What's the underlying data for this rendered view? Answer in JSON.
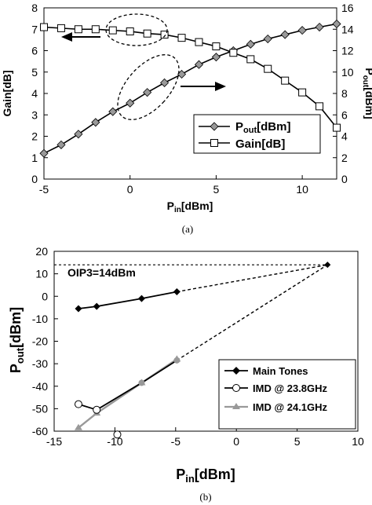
{
  "chart_data": [
    {
      "type": "line",
      "caption": "(a)",
      "xlabel_main": "P",
      "xlabel_sub": "in",
      "xlabel_unit": "[dBm]",
      "ylabel": "Gain[dB]",
      "y2label_main": "P",
      "y2label_sub": "out",
      "y2label_unit": "[dBm]",
      "xlim": [
        -5,
        12
      ],
      "ylim": [
        0,
        8
      ],
      "y2lim": [
        0,
        16
      ],
      "xticks": [
        -5,
        0,
        5,
        10
      ],
      "yticks": [
        0,
        1,
        2,
        3,
        4,
        5,
        6,
        7,
        8
      ],
      "y2ticks": [
        0,
        2,
        4,
        6,
        8,
        10,
        12,
        14,
        16
      ],
      "grid": false,
      "legend_position": "bottom-right",
      "legend": [
        {
          "main": "P",
          "sub": "out",
          "unit": "[dBm]",
          "marker": "diamond"
        },
        {
          "main": "Gain[dB]",
          "sub": "",
          "unit": "",
          "marker": "square"
        }
      ],
      "series": [
        {
          "axis": "right",
          "marker": "diamond",
          "x": [
            -5,
            -4,
            -3,
            -2,
            -1,
            0,
            1,
            2,
            3,
            4,
            5,
            6,
            7,
            8,
            9,
            10,
            11,
            12
          ],
          "values": [
            2.4,
            3.2,
            4.2,
            5.3,
            6.3,
            7.1,
            8.1,
            9.0,
            9.8,
            10.7,
            11.4,
            12.0,
            12.6,
            13.1,
            13.5,
            13.9,
            14.2,
            14.5
          ]
        },
        {
          "axis": "left",
          "marker": "square",
          "x": [
            -5,
            -4,
            -3,
            -2,
            -1,
            0,
            1,
            2,
            3,
            4,
            5,
            6,
            7,
            8,
            9,
            10,
            11,
            12
          ],
          "values": [
            7.1,
            7.05,
            7.0,
            7.0,
            6.95,
            6.9,
            6.8,
            6.75,
            6.6,
            6.4,
            6.2,
            5.9,
            5.6,
            5.15,
            4.6,
            4.05,
            3.4,
            2.4
          ]
        }
      ]
    },
    {
      "type": "line",
      "caption": "(b)",
      "xlabel_main": "P",
      "xlabel_sub": "in",
      "xlabel_unit": "[dBm]",
      "ylabel_main": "P",
      "ylabel_sub": "out",
      "ylabel_unit": "[dBm]",
      "xlim": [
        -15,
        10
      ],
      "ylim": [
        -60,
        20
      ],
      "xticks": [
        -15,
        -10,
        -5,
        0,
        5,
        10
      ],
      "yticks": [
        -60,
        -50,
        -40,
        -30,
        -20,
        -10,
        0,
        10,
        20
      ],
      "grid": false,
      "legend_position": "bottom-right",
      "annotation": "OIP3=14dBm",
      "oip3_point": {
        "x": 7.5,
        "y": 14
      },
      "series": [
        {
          "name": "Main Tones",
          "marker": "filled-diamond",
          "x": [
            -13,
            -11.5,
            -7.8,
            -4.9
          ],
          "values": [
            -5.5,
            -4.5,
            -1,
            2
          ],
          "extrapolation": {
            "x": [
              -4.9,
              7.5
            ],
            "values": [
              2,
              14
            ]
          }
        },
        {
          "name": "IMD @ 23.8GHz",
          "marker": "open-circle",
          "x": [
            -13,
            -11.5,
            -7.8,
            -4.9
          ],
          "values": [
            -48,
            -50.5,
            -38.5,
            -28.5
          ],
          "extra_point": {
            "x": -9.8,
            "y": -61.5
          },
          "extrapolation": {
            "x": [
              -4.9,
              7.5
            ],
            "values": [
              -28.5,
              14
            ]
          }
        },
        {
          "name": "IMD @ 24.1GHz",
          "marker": "triangle",
          "color": "#999999",
          "x": [
            -13,
            -11.5,
            -7.8,
            -4.9
          ],
          "values": [
            -58.5,
            -52,
            -38.5,
            -28
          ]
        }
      ]
    }
  ]
}
